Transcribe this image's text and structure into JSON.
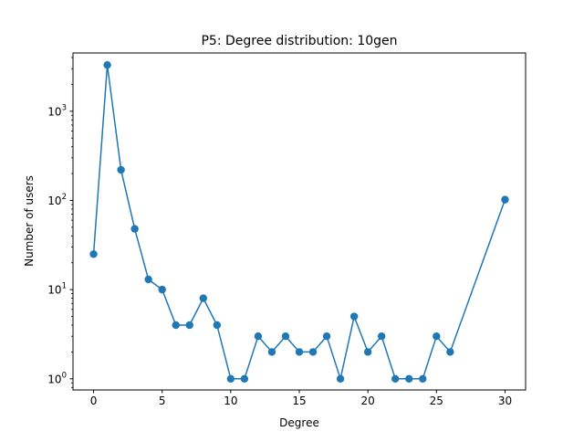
{
  "chart_data": {
    "type": "line",
    "title": "P5: Degree distribution: 10gen",
    "xlabel": "Degree",
    "ylabel": "Number of users",
    "y_scale": "log",
    "xlim": [
      -1.5,
      31.5
    ],
    "ylim": [
      0.75,
      4500
    ],
    "x_ticks": [
      {
        "value": 0,
        "label": "0"
      },
      {
        "value": 5,
        "label": "5"
      },
      {
        "value": 10,
        "label": "10"
      },
      {
        "value": 15,
        "label": "15"
      },
      {
        "value": 20,
        "label": "20"
      },
      {
        "value": 25,
        "label": "25"
      },
      {
        "value": 30,
        "label": "30"
      }
    ],
    "y_ticks": [
      {
        "value": 1,
        "base": "10",
        "exp": "0"
      },
      {
        "value": 10,
        "base": "10",
        "exp": "1"
      },
      {
        "value": 100,
        "base": "10",
        "exp": "2"
      },
      {
        "value": 1000,
        "base": "10",
        "exp": "3"
      }
    ],
    "grid": false,
    "legend": "none",
    "marker": "circle",
    "color": "#1f77b4",
    "series": [
      {
        "x": [
          0,
          1,
          2,
          3,
          4,
          5,
          6,
          7,
          8,
          9,
          10,
          11,
          12,
          13,
          14,
          15,
          16,
          17,
          18,
          19,
          20,
          21,
          22,
          23,
          24,
          25,
          26,
          30
        ],
        "y": [
          25,
          3300,
          220,
          48,
          13,
          10,
          4,
          4,
          8,
          4,
          1,
          1,
          3,
          2,
          3,
          2,
          2,
          3,
          1,
          5,
          2,
          3,
          1,
          1,
          1,
          3,
          2,
          102
        ]
      }
    ]
  }
}
